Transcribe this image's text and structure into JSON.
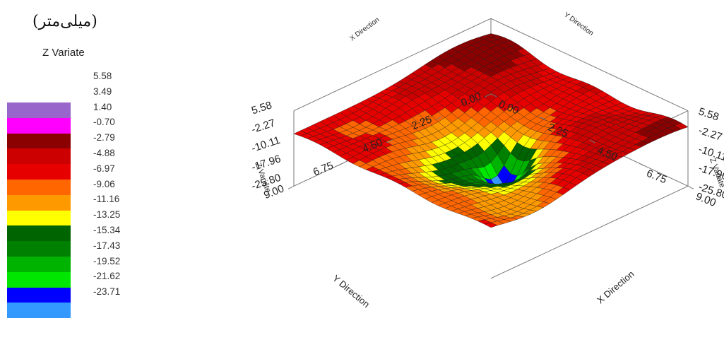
{
  "unit_label": "(میلی‌متر)",
  "chart_data": {
    "type": "surface-3d",
    "title": "",
    "legend": {
      "title": "Z Variate",
      "levels": [
        "5.58",
        "3.49",
        "1.40",
        "-0.70",
        "-2.79",
        "-4.88",
        "-6.97",
        "-9.06",
        "-11.16",
        "-13.25",
        "-15.34",
        "-17.43",
        "-19.52",
        "-21.62",
        "-23.71"
      ],
      "colors": [
        "#9966cc",
        "#ff00ff",
        "#8b0000",
        "#cc0000",
        "#e60000",
        "#ff6600",
        "#ff9900",
        "#ffff00",
        "#006400",
        "#008000",
        "#00b300",
        "#00e600",
        "#0000ff",
        "#3399ff"
      ]
    },
    "z_axis": {
      "label": "Z Variate",
      "ticks": [
        "5.58",
        "-2.27",
        "-10.11",
        "-17.96",
        "-25.80"
      ],
      "range": [
        -25.8,
        5.58
      ]
    },
    "x_axis": {
      "label": "X Direction",
      "ticks": [
        "0.00",
        "2.25",
        "4.50",
        "6.75",
        "9.00"
      ],
      "range": [
        0,
        9
      ]
    },
    "y_axis": {
      "label": "Y Direction",
      "ticks": [
        "0.00",
        "2.25",
        "4.50",
        "6.75",
        "9.00"
      ],
      "range": [
        0,
        9
      ]
    }
  }
}
